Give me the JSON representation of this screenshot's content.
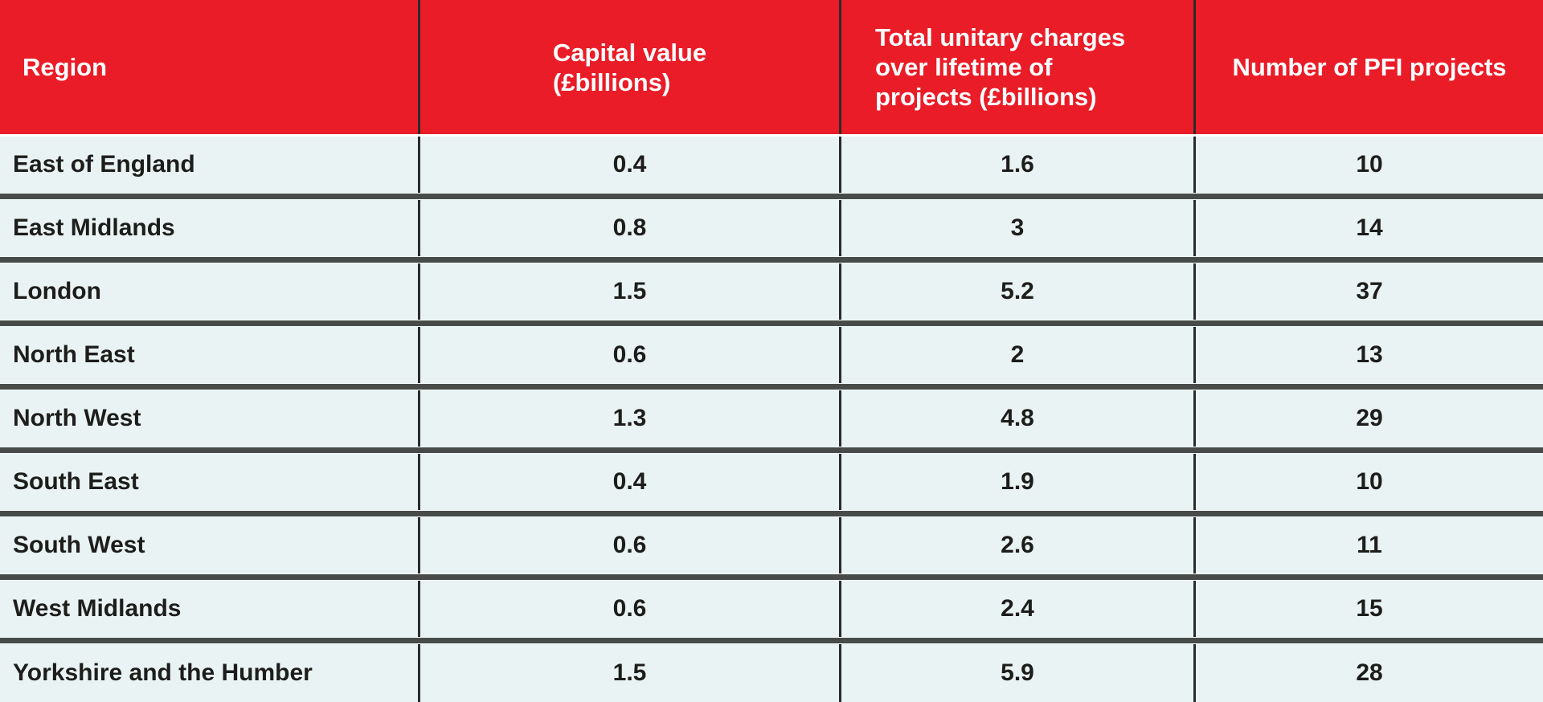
{
  "colors": {
    "header_background": "#ea1c27",
    "header_text": "#ffffff",
    "row_background": "#e9f3f3",
    "row_text": "#1d1d1b",
    "row_divider": "#474c4a",
    "column_divider": "#2b2b2b"
  },
  "table": {
    "header": {
      "region": "Region",
      "capital_value_lines": [
        "Capital value",
        "(£billions)"
      ],
      "unitary_lines": [
        "Total unitary charges",
        "over lifetime of",
        "projects (£billions)"
      ],
      "num_projects": "Number of PFI projects"
    },
    "rows": [
      {
        "region": "East of England",
        "capital_value": "0.4",
        "total_unitary_charges": "1.6",
        "num_projects": "10"
      },
      {
        "region": "East Midlands",
        "capital_value": "0.8",
        "total_unitary_charges": "3",
        "num_projects": "14"
      },
      {
        "region": "London",
        "capital_value": "1.5",
        "total_unitary_charges": "5.2",
        "num_projects": "37"
      },
      {
        "region": "North East",
        "capital_value": "0.6",
        "total_unitary_charges": "2",
        "num_projects": "13"
      },
      {
        "region": "North West",
        "capital_value": "1.3",
        "total_unitary_charges": "4.8",
        "num_projects": "29"
      },
      {
        "region": "South East",
        "capital_value": "0.4",
        "total_unitary_charges": "1.9",
        "num_projects": "10"
      },
      {
        "region": "South West",
        "capital_value": "0.6",
        "total_unitary_charges": "2.6",
        "num_projects": "11"
      },
      {
        "region": "West Midlands",
        "capital_value": "0.6",
        "total_unitary_charges": "2.4",
        "num_projects": "15"
      },
      {
        "region": "Yorkshire and the Humber",
        "capital_value": "1.5",
        "total_unitary_charges": "5.9",
        "num_projects": "28"
      }
    ]
  },
  "chart_data": {
    "type": "table",
    "title": "",
    "columns": [
      "Region",
      "Capital value (£billions)",
      "Total unitary charges over lifetime of projects (£billions)",
      "Number of PFI projects"
    ],
    "rows": [
      [
        "East of England",
        0.4,
        1.6,
        10
      ],
      [
        "East Midlands",
        0.8,
        3,
        14
      ],
      [
        "London",
        1.5,
        5.2,
        37
      ],
      [
        "North East",
        0.6,
        2,
        13
      ],
      [
        "North West",
        1.3,
        4.8,
        29
      ],
      [
        "South East",
        0.4,
        1.9,
        10
      ],
      [
        "South West",
        0.6,
        2.6,
        11
      ],
      [
        "West Midlands",
        0.6,
        2.4,
        15
      ],
      [
        "Yorkshire and the Humber",
        1.5,
        5.9,
        28
      ]
    ]
  }
}
